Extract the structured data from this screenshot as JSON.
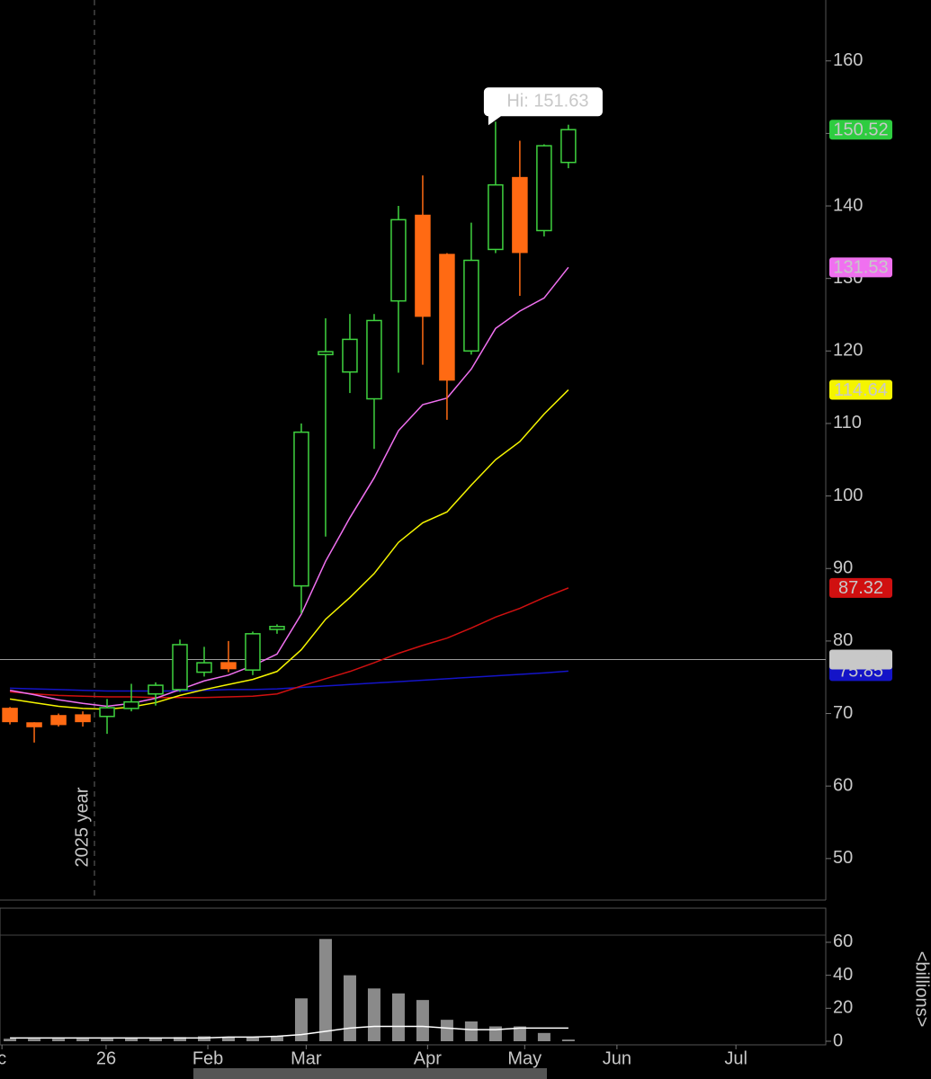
{
  "chart_data": [
    {
      "type": "candlestick",
      "x": [
        0,
        1,
        2,
        3,
        4,
        5,
        6,
        7,
        8,
        9,
        10,
        11,
        12,
        13,
        14,
        15,
        16,
        17,
        18,
        19,
        20,
        21,
        22,
        23
      ],
      "open": [
        70.7,
        68.7,
        69.7,
        69.8,
        69.6,
        70.7,
        72.7,
        73.3,
        75.7,
        77.0,
        76.0,
        81.6,
        87.6,
        119.5,
        117.1,
        113.4,
        126.9,
        138.7,
        133.3,
        120.0,
        134.0,
        143.9,
        136.6,
        146.0
      ],
      "high": [
        70.9,
        68.8,
        70.0,
        70.3,
        72.0,
        74.1,
        74.3,
        80.2,
        79.2,
        80.0,
        81.3,
        82.3,
        110.0,
        124.5,
        125.1,
        125.1,
        140.0,
        144.2,
        133.5,
        137.7,
        151.63,
        149.0,
        148.5,
        151.2
      ],
      "low": [
        68.5,
        66.0,
        68.2,
        68.2,
        67.2,
        70.3,
        71.1,
        73.0,
        75.1,
        75.7,
        75.3,
        81.0,
        83.8,
        94.4,
        114.2,
        106.5,
        117.0,
        118.1,
        110.5,
        119.5,
        133.5,
        127.6,
        135.8,
        145.2
      ],
      "close": [
        68.9,
        68.2,
        68.5,
        68.9,
        70.8,
        71.6,
        73.9,
        79.5,
        77.0,
        76.2,
        81.0,
        82.0,
        108.8,
        119.9,
        121.6,
        124.2,
        138.1,
        124.8,
        116.0,
        132.5,
        142.9,
        133.6,
        148.3,
        150.52
      ],
      "up_color": "#3fd23f",
      "down_color": "#ff6a13",
      "last_label_color": "#2ecc40",
      "moving_averages": [
        {
          "color": "#1414c8",
          "values": [
            73.5,
            73.4,
            73.3,
            73.2,
            73.1,
            73.1,
            73.1,
            73.1,
            73.2,
            73.3,
            73.3,
            73.4,
            73.6,
            73.8,
            74.0,
            74.2,
            74.4,
            74.6,
            74.8,
            75.0,
            75.2,
            75.4,
            75.6,
            75.85
          ]
        },
        {
          "color": "#d01010",
          "values": [
            73.0,
            72.7,
            72.5,
            72.4,
            72.3,
            72.3,
            72.2,
            72.2,
            72.2,
            72.3,
            72.4,
            72.7,
            73.8,
            74.8,
            75.8,
            77.0,
            78.3,
            79.4,
            80.4,
            81.8,
            83.3,
            84.5,
            86.0,
            87.32
          ]
        },
        {
          "color": "#f5f500",
          "values": [
            72.0,
            71.5,
            71.0,
            70.7,
            70.6,
            70.9,
            71.5,
            72.5,
            73.3,
            74.0,
            74.7,
            75.8,
            78.8,
            83.0,
            86.0,
            89.3,
            93.6,
            96.3,
            97.8,
            101.5,
            105.0,
            107.5,
            111.3,
            114.64
          ]
        },
        {
          "color": "#f070f0",
          "values": [
            73.2,
            72.6,
            71.9,
            71.4,
            71.0,
            71.4,
            72.1,
            73.3,
            74.5,
            75.3,
            76.6,
            78.2,
            83.7,
            91.0,
            97.0,
            102.5,
            109.0,
            112.6,
            113.5,
            117.5,
            123.1,
            125.5,
            127.3,
            131.53
          ]
        }
      ],
      "price_line": {
        "value": 77.44,
        "color": "#9a9a9a"
      },
      "annotation": "Hi: 151.63",
      "year_marker": {
        "x": 3.48,
        "label": "2025 year"
      },
      "xlim": [
        -0.41,
        33.6
      ],
      "ylim": [
        44.4,
        168.4
      ],
      "yticks": [
        50,
        60,
        70,
        80,
        90,
        100,
        110,
        120,
        130,
        140,
        150,
        160
      ]
    },
    {
      "type": "bar",
      "x": [
        0,
        1,
        2,
        3,
        4,
        5,
        6,
        7,
        8,
        9,
        10,
        11,
        12,
        13,
        14,
        15,
        16,
        17,
        18,
        19,
        20,
        21,
        22,
        23
      ],
      "values": [
        1.5,
        1.5,
        1.5,
        1.5,
        1.5,
        2.0,
        2.0,
        2.5,
        3.0,
        2.5,
        2.5,
        3.0,
        26,
        62,
        40,
        32,
        29,
        25,
        13,
        12,
        9,
        9,
        5,
        1
      ],
      "average": [
        2,
        2,
        2,
        2,
        2,
        2,
        2,
        2,
        2,
        2.5,
        2.5,
        3,
        4,
        6,
        8,
        9,
        9,
        9,
        8,
        7,
        7,
        8,
        8,
        8
      ],
      "color": "#8a8a8a",
      "average_color": "#ffffff",
      "y_label": "<billions>",
      "xlim": [
        -0.41,
        33.6
      ],
      "ylim": [
        0,
        80.7
      ],
      "yticks": [
        0,
        20,
        40,
        60
      ],
      "xticks": [
        {
          "value": -0.33,
          "label": "c"
        },
        {
          "value": 3.96,
          "label": "26"
        },
        {
          "value": 8.15,
          "label": "Feb"
        },
        {
          "value": 12.2,
          "label": "Mar"
        },
        {
          "value": 17.2,
          "label": "Apr"
        },
        {
          "value": 21.2,
          "label": "May"
        },
        {
          "value": 25.0,
          "label": "Jun"
        },
        {
          "value": 29.9,
          "label": "Jul"
        }
      ]
    }
  ]
}
